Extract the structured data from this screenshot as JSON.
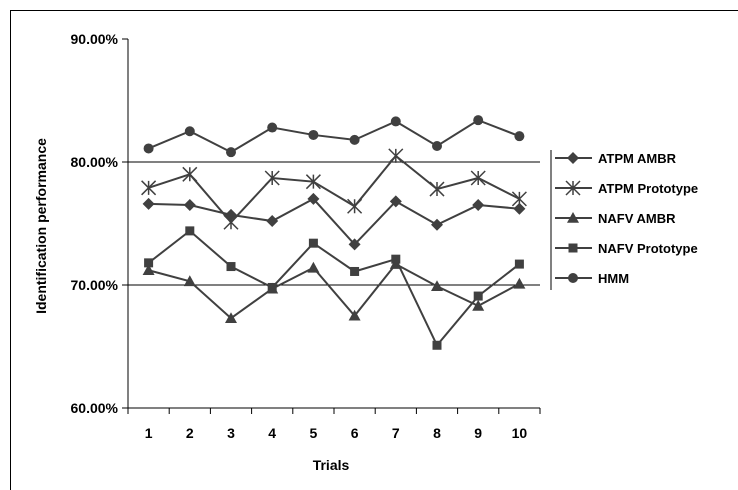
{
  "chart_data": {
    "type": "line",
    "title": "",
    "xlabel": "Trials",
    "ylabel": "Identification performance",
    "categories": [
      "1",
      "2",
      "3",
      "4",
      "5",
      "6",
      "7",
      "8",
      "9",
      "10"
    ],
    "ylim": [
      0.6,
      0.9
    ],
    "yticks": [
      {
        "value": 0.6,
        "label": "60.00%"
      },
      {
        "value": 0.7,
        "label": "70.00%"
      },
      {
        "value": 0.8,
        "label": "80.00%"
      },
      {
        "value": 0.9,
        "label": "90.00%"
      }
    ],
    "gridlines": [
      0.7,
      0.8
    ],
    "legend_position": "right",
    "line_color": "#404040",
    "series": [
      {
        "name": "ATPM AMBR",
        "marker": "diamond",
        "values": [
          0.766,
          0.765,
          0.757,
          0.752,
          0.77,
          0.733,
          0.768,
          0.749,
          0.765,
          0.762
        ]
      },
      {
        "name": "ATPM Prototype",
        "marker": "asterisk",
        "values": [
          0.779,
          0.79,
          0.751,
          0.787,
          0.784,
          0.764,
          0.805,
          0.778,
          0.787,
          0.77
        ]
      },
      {
        "name": "NAFV AMBR",
        "marker": "triangle",
        "values": [
          0.712,
          0.703,
          0.673,
          0.697,
          0.714,
          0.675,
          0.717,
          0.699,
          0.683,
          0.701
        ]
      },
      {
        "name": "NAFV Prototype",
        "marker": "square",
        "values": [
          0.718,
          0.744,
          0.715,
          0.698,
          0.734,
          0.711,
          0.721,
          0.651,
          0.691,
          0.717
        ]
      },
      {
        "name": "HMM",
        "marker": "circle",
        "values": [
          0.811,
          0.825,
          0.808,
          0.828,
          0.822,
          0.818,
          0.833,
          0.813,
          0.834,
          0.821
        ]
      }
    ]
  }
}
